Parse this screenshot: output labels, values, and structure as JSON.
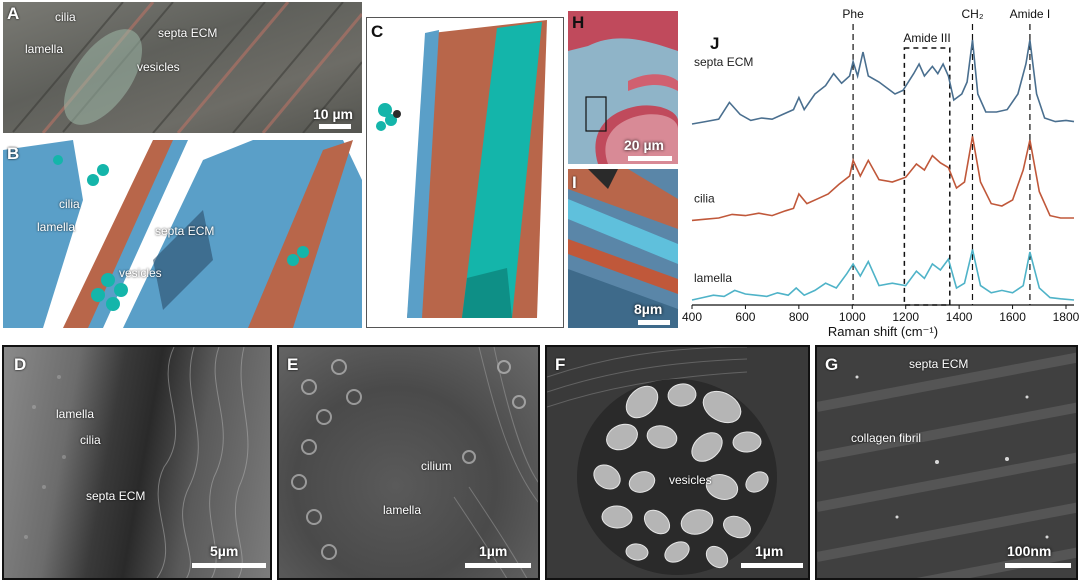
{
  "panels": {
    "A": {
      "label": "A",
      "annotations": [
        "cilia",
        "septa ECM",
        "lamella",
        "vesicles"
      ],
      "scale": "10 µm"
    },
    "B": {
      "label": "B",
      "annotations": [
        "cilia",
        "lamella",
        "septa ECM",
        "vesicles"
      ]
    },
    "C": {
      "label": "C"
    },
    "H": {
      "label": "H",
      "scale": "20 µm"
    },
    "I": {
      "label": "I",
      "scale": "8µm"
    },
    "J": {
      "label": "J"
    },
    "D": {
      "label": "D",
      "annotations": [
        "lamella",
        "cilia",
        "septa ECM"
      ],
      "scale": "5µm"
    },
    "E": {
      "label": "E",
      "annotations": [
        "cilium",
        "lamella"
      ],
      "scale": "1µm"
    },
    "F": {
      "label": "F",
      "annotations": [
        "vesicles"
      ],
      "scale": "1µm"
    },
    "G": {
      "label": "G",
      "annotations": [
        "septa ECM",
        "collagen fibril"
      ],
      "scale": "100nm"
    }
  },
  "colors": {
    "septa_ecm": "#4a6f8f",
    "cilia": "#c0583a",
    "lamella": "#4fb3c8",
    "render_blue": "#5a9fc8",
    "render_orange": "#b8664a",
    "render_teal": "#14b5aa"
  },
  "chart_data": {
    "type": "line",
    "title": "",
    "xlabel": "Raman shift (cm⁻¹)",
    "ylabel": "",
    "xlim": [
      400,
      1830
    ],
    "xticks": [
      "400",
      "600",
      "800",
      "1000",
      "1200",
      "1400",
      "1600",
      "1800"
    ],
    "markers": [
      {
        "label": "Phe",
        "x": 1003
      },
      {
        "label": "CH₂",
        "x": 1450
      },
      {
        "label": "Amide I",
        "x": 1665
      }
    ],
    "regions": [
      {
        "label": "Amide III",
        "x": [
          1195,
          1365
        ]
      }
    ],
    "series": [
      {
        "name": "septa ECM",
        "color": "#4a6f8f",
        "x": [
          400,
          450,
          500,
          540,
          580,
          620,
          660,
          700,
          740,
          780,
          800,
          820,
          860,
          900,
          930,
          960,
          990,
          1003,
          1020,
          1040,
          1060,
          1100,
          1130,
          1160,
          1190,
          1230,
          1250,
          1270,
          1300,
          1320,
          1340,
          1360,
          1380,
          1410,
          1430,
          1450,
          1470,
          1500,
          1540,
          1580,
          1620,
          1650,
          1665,
          1690,
          1720,
          1760,
          1800,
          1830
        ],
        "y": [
          0.3,
          0.32,
          0.34,
          0.48,
          0.38,
          0.33,
          0.35,
          0.34,
          0.38,
          0.42,
          0.52,
          0.42,
          0.55,
          0.62,
          0.72,
          0.64,
          0.7,
          0.82,
          0.7,
          0.9,
          0.7,
          0.65,
          0.6,
          0.55,
          0.58,
          0.72,
          0.8,
          0.7,
          0.78,
          0.72,
          0.8,
          0.7,
          0.5,
          0.55,
          0.65,
          1.0,
          0.55,
          0.4,
          0.4,
          0.42,
          0.55,
          0.8,
          1.0,
          0.55,
          0.35,
          0.32,
          0.33,
          0.32
        ]
      },
      {
        "name": "cilia",
        "color": "#c0583a",
        "x": [
          400,
          450,
          500,
          550,
          600,
          650,
          700,
          750,
          780,
          800,
          830,
          870,
          910,
          950,
          990,
          1003,
          1030,
          1060,
          1100,
          1150,
          1200,
          1240,
          1270,
          1300,
          1330,
          1360,
          1390,
          1420,
          1450,
          1480,
          1520,
          1560,
          1600,
          1640,
          1665,
          1700,
          1740,
          1780,
          1830
        ],
        "y": [
          0.08,
          0.09,
          0.1,
          0.13,
          0.12,
          0.14,
          0.12,
          0.16,
          0.18,
          0.3,
          0.22,
          0.26,
          0.3,
          0.38,
          0.45,
          0.58,
          0.45,
          0.58,
          0.42,
          0.4,
          0.44,
          0.55,
          0.5,
          0.62,
          0.56,
          0.52,
          0.35,
          0.4,
          0.78,
          0.4,
          0.22,
          0.2,
          0.25,
          0.5,
          0.75,
          0.32,
          0.12,
          0.1,
          0.1
        ]
      },
      {
        "name": "lamella",
        "color": "#4fb3c8",
        "x": [
          400,
          440,
          480,
          520,
          560,
          600,
          640,
          680,
          720,
          760,
          790,
          820,
          860,
          900,
          940,
          980,
          1003,
          1030,
          1060,
          1100,
          1150,
          1200,
          1240,
          1270,
          1300,
          1330,
          1360,
          1390,
          1420,
          1450,
          1480,
          1520,
          1560,
          1600,
          1640,
          1665,
          1700,
          1740,
          1780,
          1830
        ],
        "y": [
          0.0,
          0.02,
          0.04,
          0.03,
          0.08,
          0.05,
          0.04,
          0.03,
          0.06,
          0.04,
          0.1,
          0.04,
          0.08,
          0.14,
          0.1,
          0.22,
          0.3,
          0.2,
          0.32,
          0.12,
          0.14,
          0.12,
          0.24,
          0.18,
          0.3,
          0.25,
          0.34,
          0.1,
          0.14,
          0.42,
          0.12,
          0.06,
          0.08,
          0.06,
          0.12,
          0.4,
          0.1,
          0.02,
          0.01,
          0.0
        ]
      }
    ]
  }
}
